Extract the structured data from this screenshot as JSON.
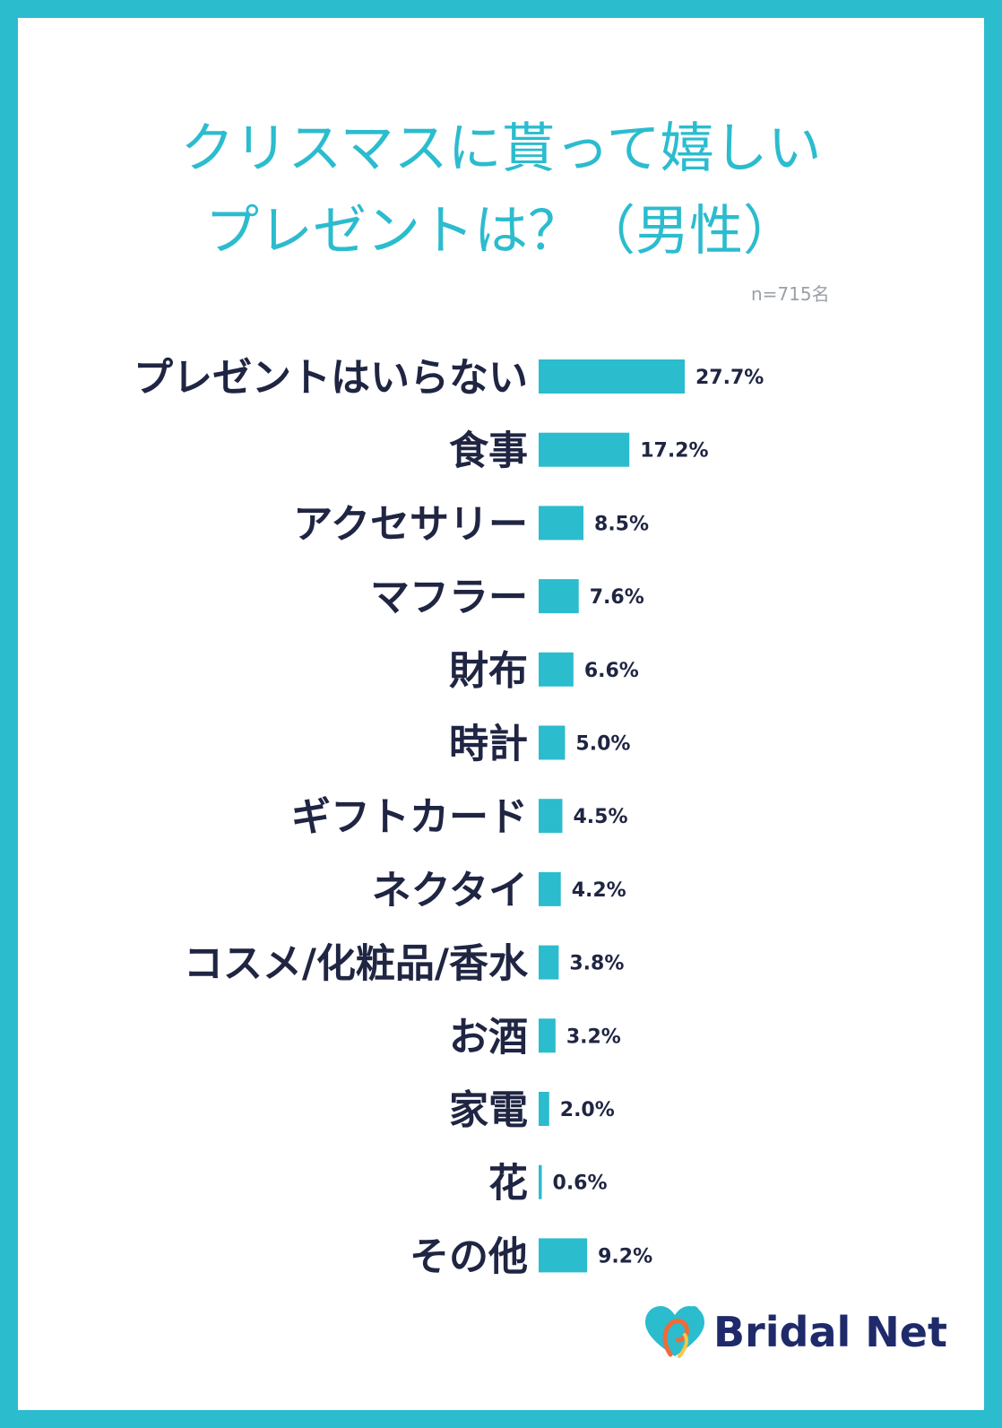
{
  "page": {
    "title_line1": "クリスマスに貰って嬉しい",
    "title_line2": "プレゼントは？（男性）",
    "sample_size": "n=715名",
    "brand": "Bridal Net",
    "accent_color": "#2bbcce",
    "text_color": "#1f2542",
    "brand_color": "#1f2a6b"
  },
  "chart_data": {
    "type": "bar",
    "orientation": "horizontal",
    "title": "クリスマスに貰って嬉しいプレゼントは？（男性）",
    "categories": [
      "プレゼントはいらない",
      "食事",
      "アクセサリー",
      "マフラー",
      "財布",
      "時計",
      "ギフトカード",
      "ネクタイ",
      "コスメ/化粧品/香水",
      "お酒",
      "家電",
      "花",
      "その他"
    ],
    "values": [
      27.7,
      17.2,
      8.5,
      7.6,
      6.6,
      5.0,
      4.5,
      4.2,
      3.8,
      3.2,
      2.0,
      0.6,
      9.2
    ],
    "value_labels": [
      "27.7%",
      "17.2%",
      "8.5%",
      "7.6%",
      "6.6%",
      "5.0%",
      "4.5%",
      "4.2%",
      "3.8%",
      "3.2%",
      "2.0%",
      "0.6%",
      "9.2%"
    ],
    "unit": "%",
    "bar_color": "#2bbcce",
    "xlim": [
      0,
      27.7
    ],
    "grid": false
  }
}
